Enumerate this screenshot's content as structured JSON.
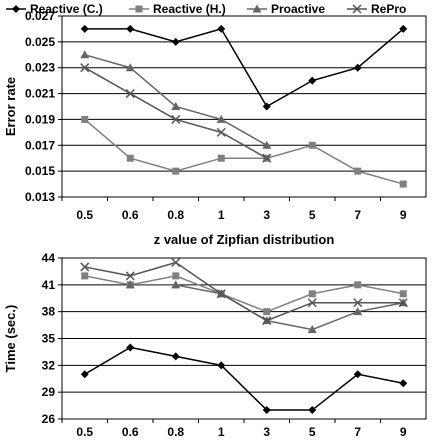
{
  "legend": {
    "placement": "top",
    "entries": [
      {
        "name": "Reactive (C.)",
        "marker": "diamond",
        "color": "#000000"
      },
      {
        "name": "Reactive (H.)",
        "marker": "square",
        "color": "#808080"
      },
      {
        "name": "Proactive",
        "marker": "triangle",
        "color": "#666666"
      },
      {
        "name": "RePro",
        "marker": "x",
        "color": "#555555"
      }
    ]
  },
  "chart_data": [
    {
      "type": "line",
      "categories": [
        "0.5",
        "0.6",
        "0.8",
        "1",
        "3",
        "5",
        "7",
        "9"
      ],
      "xlabel": "z value of Zipfian distribution",
      "ylabel": "Error rate",
      "ylim": [
        0.013,
        0.027
      ],
      "yticks": [
        0.013,
        0.015,
        0.017,
        0.019,
        0.021,
        0.023,
        0.025,
        0.027
      ],
      "ytick_labels": [
        "0.013",
        "0.015",
        "0.017",
        "0.019",
        "0.021",
        "0.023",
        "0.025",
        "0.027"
      ],
      "grid": true,
      "series": [
        {
          "name": "Reactive (C.)",
          "values": [
            0.026,
            0.026,
            0.025,
            0.026,
            0.02,
            0.022,
            0.023,
            0.026
          ]
        },
        {
          "name": "Reactive (H.)",
          "values": [
            0.019,
            0.016,
            0.015,
            0.016,
            0.016,
            0.017,
            0.015,
            0.014
          ]
        },
        {
          "name": "Proactive",
          "values": [
            0.024,
            0.023,
            0.02,
            0.019,
            0.017,
            null,
            null,
            null
          ]
        },
        {
          "name": "RePro",
          "values": [
            0.023,
            0.021,
            0.019,
            0.018,
            0.016,
            null,
            null,
            null
          ]
        }
      ]
    },
    {
      "type": "line",
      "categories": [
        "0.5",
        "0.6",
        "0.8",
        "1",
        "3",
        "5",
        "7",
        "9"
      ],
      "xlabel": "",
      "ylabel": "Time (sec.)",
      "ylim": [
        26,
        44
      ],
      "yticks": [
        26,
        29,
        32,
        35,
        38,
        41,
        44
      ],
      "ytick_labels": [
        "26",
        "29",
        "32",
        "35",
        "38",
        "41",
        "44"
      ],
      "grid": true,
      "series": [
        {
          "name": "Reactive (C.)",
          "values": [
            31,
            34,
            33,
            32,
            27,
            27,
            31,
            30
          ]
        },
        {
          "name": "Reactive (H.)",
          "values": [
            42,
            41,
            42,
            40,
            38,
            40,
            41,
            40
          ]
        },
        {
          "name": "Proactive",
          "values": [
            null,
            41,
            41,
            40,
            37,
            36,
            38,
            39
          ]
        },
        {
          "name": "RePro",
          "values": [
            43,
            42,
            43.5,
            40,
            37,
            39,
            39,
            39
          ]
        }
      ]
    }
  ]
}
